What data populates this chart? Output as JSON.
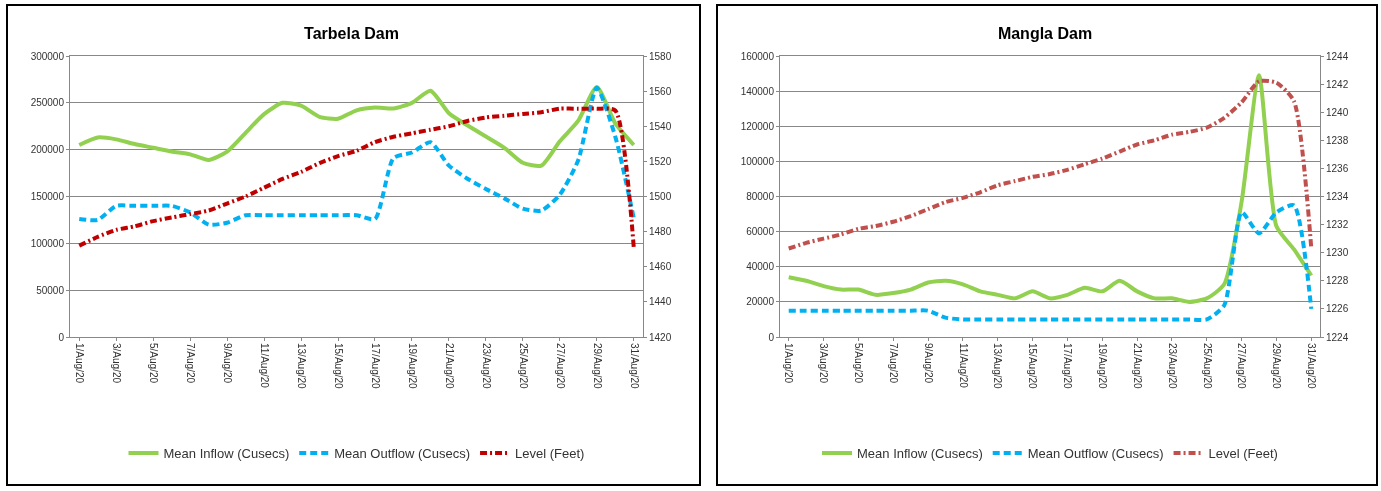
{
  "chart_data": [
    {
      "type": "line",
      "title": "Tarbela Dam",
      "categories": [
        "1/Aug/20",
        null,
        "3/Aug/20",
        null,
        "5/Aug/20",
        null,
        "7/Aug/20",
        null,
        "9/Aug/20",
        null,
        "11/Aug/20",
        null,
        "13/Aug/20",
        null,
        "15/Aug/20",
        null,
        "17/Aug/20",
        null,
        "19/Aug/20",
        null,
        "21/Aug/20",
        null,
        "23/Aug/20",
        null,
        "25/Aug/20",
        null,
        "27/Aug/20",
        null,
        "29/Aug/20",
        null,
        "31/Aug/20"
      ],
      "series": [
        {
          "name": "Mean Inflow (Cusecs)",
          "color": "#92d050",
          "line_style": "solid",
          "values": [
            205000,
            213000,
            211000,
            206000,
            202000,
            198000,
            195000,
            189000,
            198000,
            218000,
            238000,
            250000,
            247000,
            235000,
            233000,
            242000,
            245000,
            244000,
            250000,
            263000,
            239000,
            226000,
            214000,
            202000,
            186000,
            183000,
            209000,
            231000,
            267000,
            228000,
            205000
          ]
        },
        {
          "name": "Mean Outflow (Cusecs)",
          "color": "#00b0f0",
          "line_style": "dashed",
          "values": [
            126000,
            125000,
            140000,
            140000,
            140000,
            140000,
            133000,
            120000,
            122000,
            130000,
            130000,
            130000,
            130000,
            130000,
            130000,
            130000,
            126000,
            191000,
            197000,
            208000,
            183000,
            169000,
            158000,
            148000,
            137000,
            135000,
            152000,
            189000,
            266000,
            214000,
            127000
          ]
        },
        {
          "name": "Level (Feet)",
          "color": "#c00000",
          "line_style": "dashdot",
          "axis": "y2",
          "values": [
            1472,
            1477,
            1481,
            1483,
            1486,
            1488,
            1490,
            1492,
            1496,
            1500,
            1505,
            1510,
            1514,
            1519,
            1523,
            1526,
            1531,
            1534,
            1536,
            1538,
            1540,
            1543,
            1545,
            1546,
            1547,
            1548,
            1550,
            1550,
            1550,
            1549,
            1471
          ]
        }
      ],
      "ylim": [
        0,
        300000
      ],
      "yticks": [
        0,
        50000,
        100000,
        150000,
        200000,
        250000,
        300000
      ],
      "y2lim": [
        1420,
        1580
      ],
      "y2ticks": [
        1420,
        1440,
        1460,
        1480,
        1500,
        1520,
        1540,
        1560,
        1580
      ],
      "grid": "y",
      "legend": "bottom",
      "marker": "none"
    },
    {
      "type": "line",
      "title": "Mangla Dam",
      "categories": [
        "1/Aug/20",
        null,
        "3/Aug/20",
        null,
        "5/Aug/20",
        null,
        "7/Aug/20",
        null,
        "9/Aug/20",
        null,
        "11/Aug/20",
        null,
        "13/Aug/20",
        null,
        "15/Aug/20",
        null,
        "17/Aug/20",
        null,
        "19/Aug/20",
        null,
        "21/Aug/20",
        null,
        "23/Aug/20",
        null,
        "25/Aug/20",
        null,
        "27/Aug/20",
        null,
        "29/Aug/20",
        null,
        "31/Aug/20"
      ],
      "series": [
        {
          "name": "Mean Inflow (Cusecs)",
          "color": "#92d050",
          "line_style": "solid",
          "values": [
            34000,
            32000,
            29000,
            27000,
            27000,
            24000,
            25000,
            27000,
            31000,
            32000,
            30000,
            26000,
            24000,
            22000,
            26000,
            22000,
            24000,
            28000,
            26000,
            32000,
            26000,
            22000,
            22000,
            20000,
            22000,
            30000,
            77000,
            149000,
            63000,
            50000,
            35000
          ]
        },
        {
          "name": "Mean Outflow (Cusecs)",
          "color": "#00b0f0",
          "line_style": "dashed",
          "values": [
            15000,
            15000,
            15000,
            15000,
            15000,
            15000,
            15000,
            15000,
            15000,
            11000,
            10000,
            10000,
            10000,
            10000,
            10000,
            10000,
            10000,
            10000,
            10000,
            10000,
            10000,
            10000,
            10000,
            10000,
            10000,
            18000,
            71000,
            59000,
            71000,
            75000,
            16000
          ]
        },
        {
          "name": "Level (Feet)",
          "color": "#c0504d",
          "line_style": "dashdot",
          "axis": "y2",
          "values": [
            1230.3,
            1230.7,
            1231.0,
            1231.3,
            1231.7,
            1231.9,
            1232.2,
            1232.6,
            1233.1,
            1233.6,
            1233.9,
            1234.3,
            1234.8,
            1235.1,
            1235.4,
            1235.6,
            1235.9,
            1236.3,
            1236.7,
            1237.2,
            1237.7,
            1238.0,
            1238.4,
            1238.6,
            1238.9,
            1239.6,
            1240.7,
            1242.2,
            1242.1,
            1240.8,
            1230.3
          ]
        }
      ],
      "ylim": [
        0,
        160000
      ],
      "yticks": [
        0,
        20000,
        40000,
        60000,
        80000,
        100000,
        120000,
        140000,
        160000
      ],
      "y2lim": [
        1224,
        1244
      ],
      "y2ticks": [
        1224,
        1226,
        1228,
        1230,
        1232,
        1234,
        1236,
        1238,
        1240,
        1242,
        1244
      ],
      "grid": "y",
      "legend": "bottom",
      "marker": "none"
    }
  ]
}
